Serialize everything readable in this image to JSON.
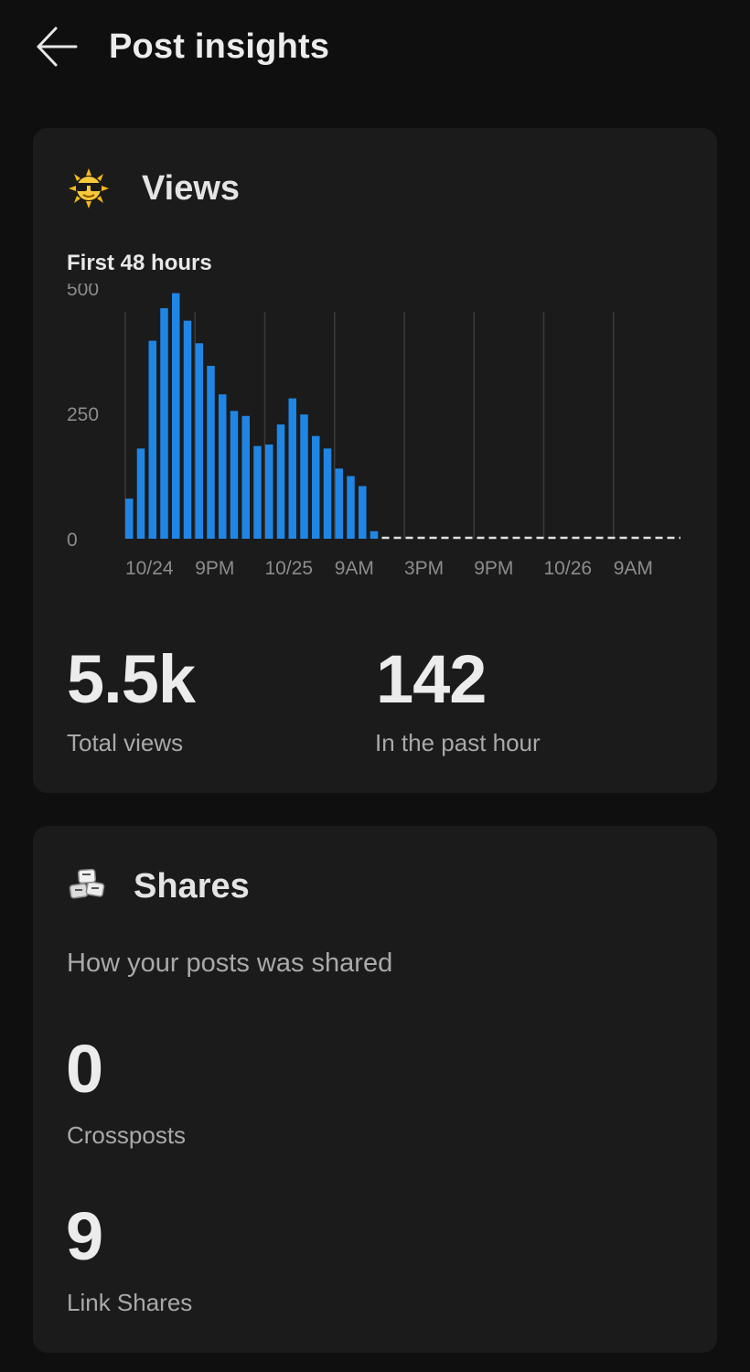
{
  "header": {
    "title": "Post insights",
    "back_icon": "arrow-left-icon"
  },
  "views": {
    "title": "Views",
    "icon": "sun-with-sunglasses-icon",
    "subtitle": "First 48 hours",
    "total_views": "5.5k",
    "total_views_label": "Total views",
    "past_hour": "142",
    "past_hour_label": "In the past hour"
  },
  "shares": {
    "title": "Shares",
    "icon": "share-stack-icon",
    "subtitle": "How your posts was shared",
    "crossposts": "0",
    "crossposts_label": "Crossposts",
    "link_shares": "9",
    "link_shares_label": "Link Shares"
  },
  "colors": {
    "background": "#0f0f0f",
    "card": "#1b1b1b",
    "bar": "#1f86e5",
    "muted_text": "#a9a9a9"
  },
  "chart_data": {
    "type": "bar",
    "title": "First 48 hours",
    "ylim": [
      0,
      500
    ],
    "y_ticks": [
      "0",
      "250",
      "500"
    ],
    "x_tick_labels": [
      "10/24",
      "9PM",
      "10/25",
      "9AM",
      "3PM",
      "9PM",
      "10/26",
      "9AM"
    ],
    "series": [
      {
        "values": [
          80,
          180,
          395,
          460,
          490,
          435,
          390,
          345,
          288,
          255,
          245,
          185,
          188,
          228,
          280,
          248,
          205,
          180,
          140,
          125,
          105,
          15
        ]
      }
    ],
    "future_placeholder": "dashed",
    "grid": true
  }
}
